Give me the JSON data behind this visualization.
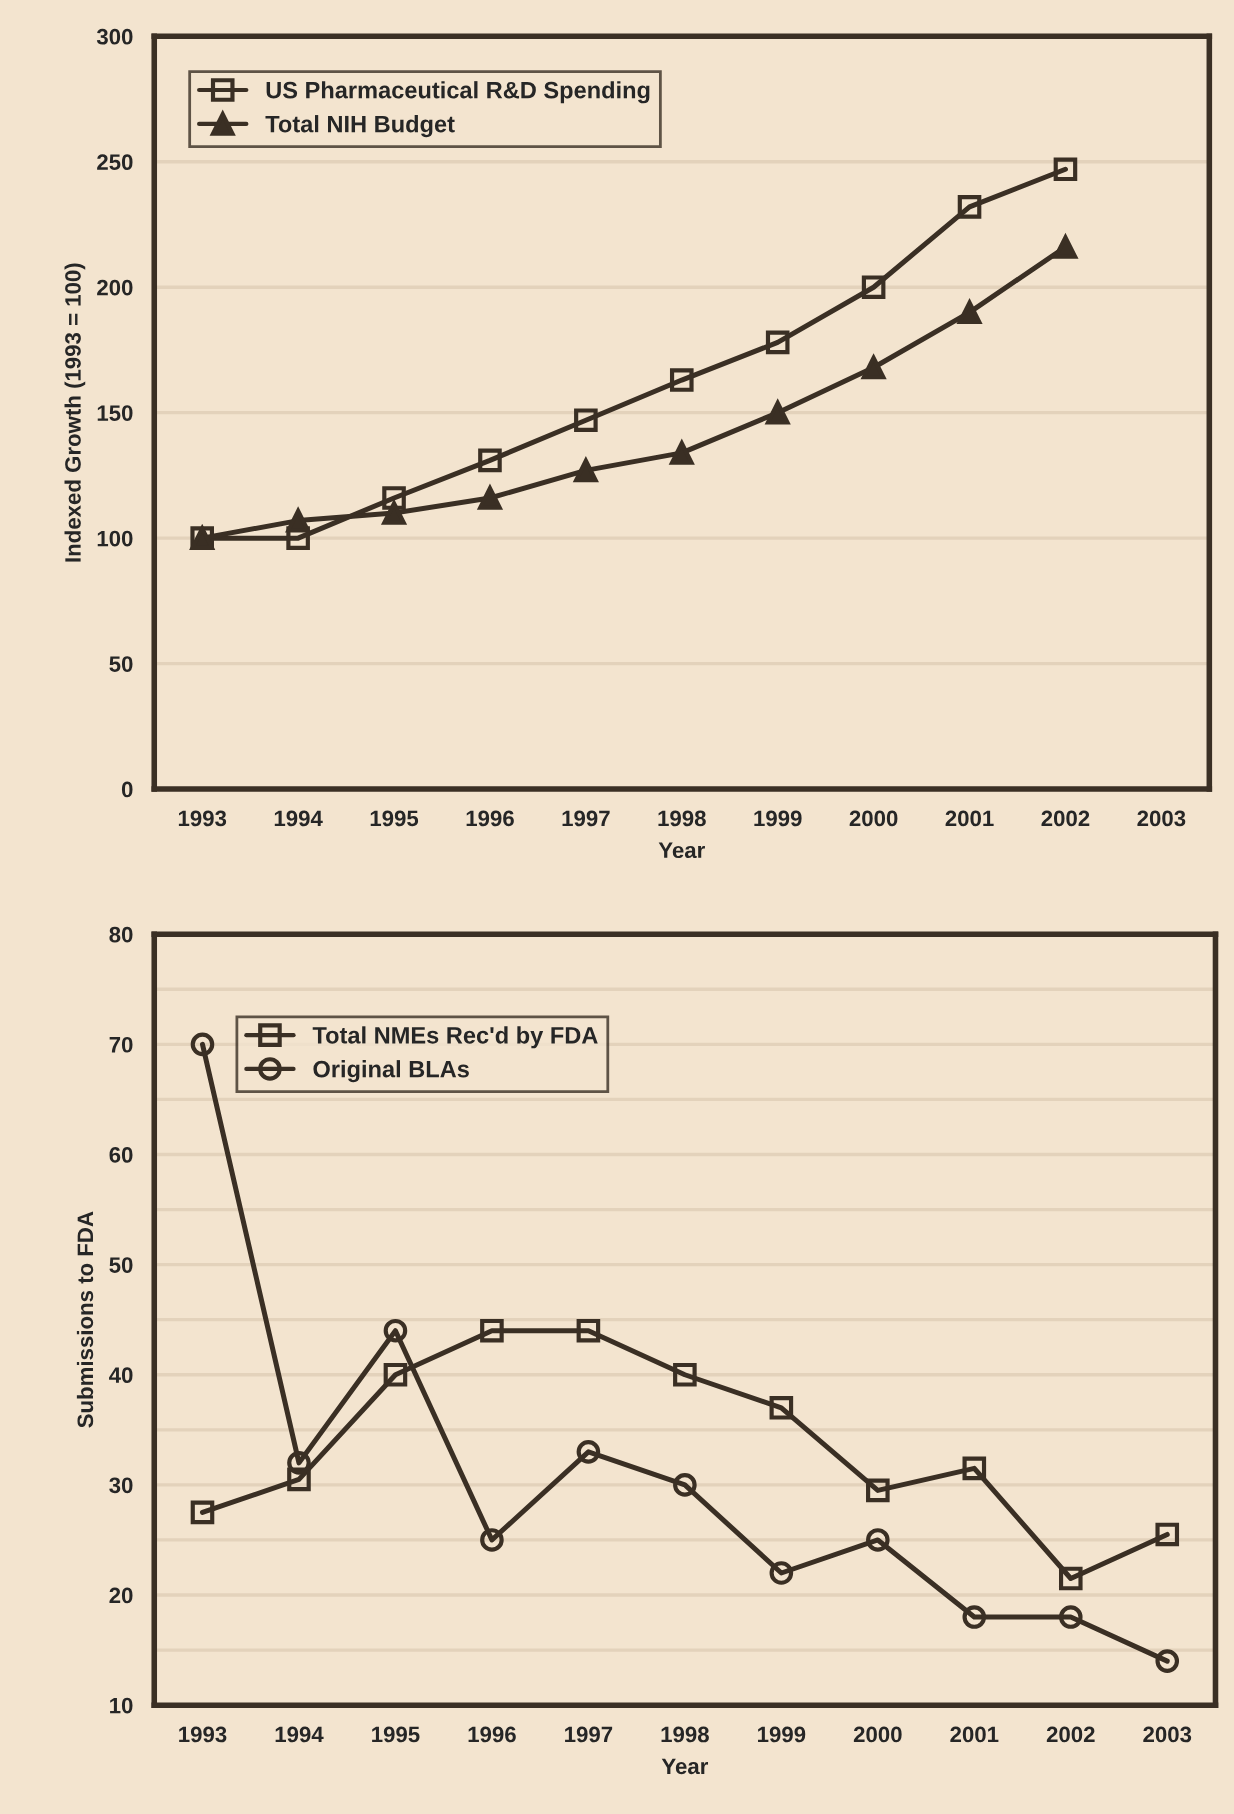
{
  "chart_data": [
    {
      "type": "line",
      "xlabel": "Year",
      "ylabel": "Indexed Growth (1993 = 100)",
      "categories": [
        "1993",
        "1994",
        "1995",
        "1996",
        "1997",
        "1998",
        "1999",
        "2000",
        "2001",
        "2002",
        "2003"
      ],
      "series": [
        {
          "name": "US Pharmaceutical R&D Spending",
          "color": "#3a2f24",
          "marker": "square",
          "values": [
            100,
            100,
            116,
            131,
            147,
            163,
            178,
            200,
            232,
            247,
            null
          ]
        },
        {
          "name": "Total NIH Budget",
          "color": "#3a2f24",
          "marker": "triangle",
          "values": [
            100,
            107,
            110,
            116,
            127,
            134,
            150,
            168,
            190,
            216,
            null
          ]
        }
      ],
      "ylim": [
        0,
        300
      ],
      "yticks": [
        0,
        50,
        100,
        150,
        200,
        250,
        300
      ],
      "grid": "y",
      "legend": "top left",
      "line_style": "solid"
    },
    {
      "type": "line",
      "xlabel": "Year",
      "ylabel": "Submissions to FDA",
      "categories": [
        "1993",
        "1994",
        "1995",
        "1996",
        "1997",
        "1998",
        "1999",
        "2000",
        "2001",
        "2002",
        "2003"
      ],
      "series": [
        {
          "name": "Total NMEs Rec'd by FDA",
          "color": "#3a2f24",
          "marker": "square",
          "values": [
            27.5,
            30.5,
            40,
            44,
            44,
            40,
            37,
            29.5,
            31.5,
            21.5,
            25.5
          ]
        },
        {
          "name": "Original BLAs",
          "color": "#3a2f24",
          "marker": "circle",
          "values": [
            70,
            32,
            44,
            25,
            33,
            30,
            22,
            25,
            18,
            18,
            14
          ]
        }
      ],
      "ylim": [
        10,
        80
      ],
      "yticks": [
        10,
        {
          "value": 15,
          "label": null
        },
        20,
        {
          "value": 25,
          "label": null
        },
        30,
        {
          "value": 35,
          "label": null
        },
        40,
        {
          "value": 45,
          "label": null
        },
        50,
        {
          "value": 55,
          "label": null
        },
        60,
        {
          "value": 65,
          "label": null
        },
        70,
        {
          "value": 75,
          "label": null
        },
        80
      ],
      "grid": "y",
      "legend": "top left",
      "line_style": "solid"
    }
  ]
}
